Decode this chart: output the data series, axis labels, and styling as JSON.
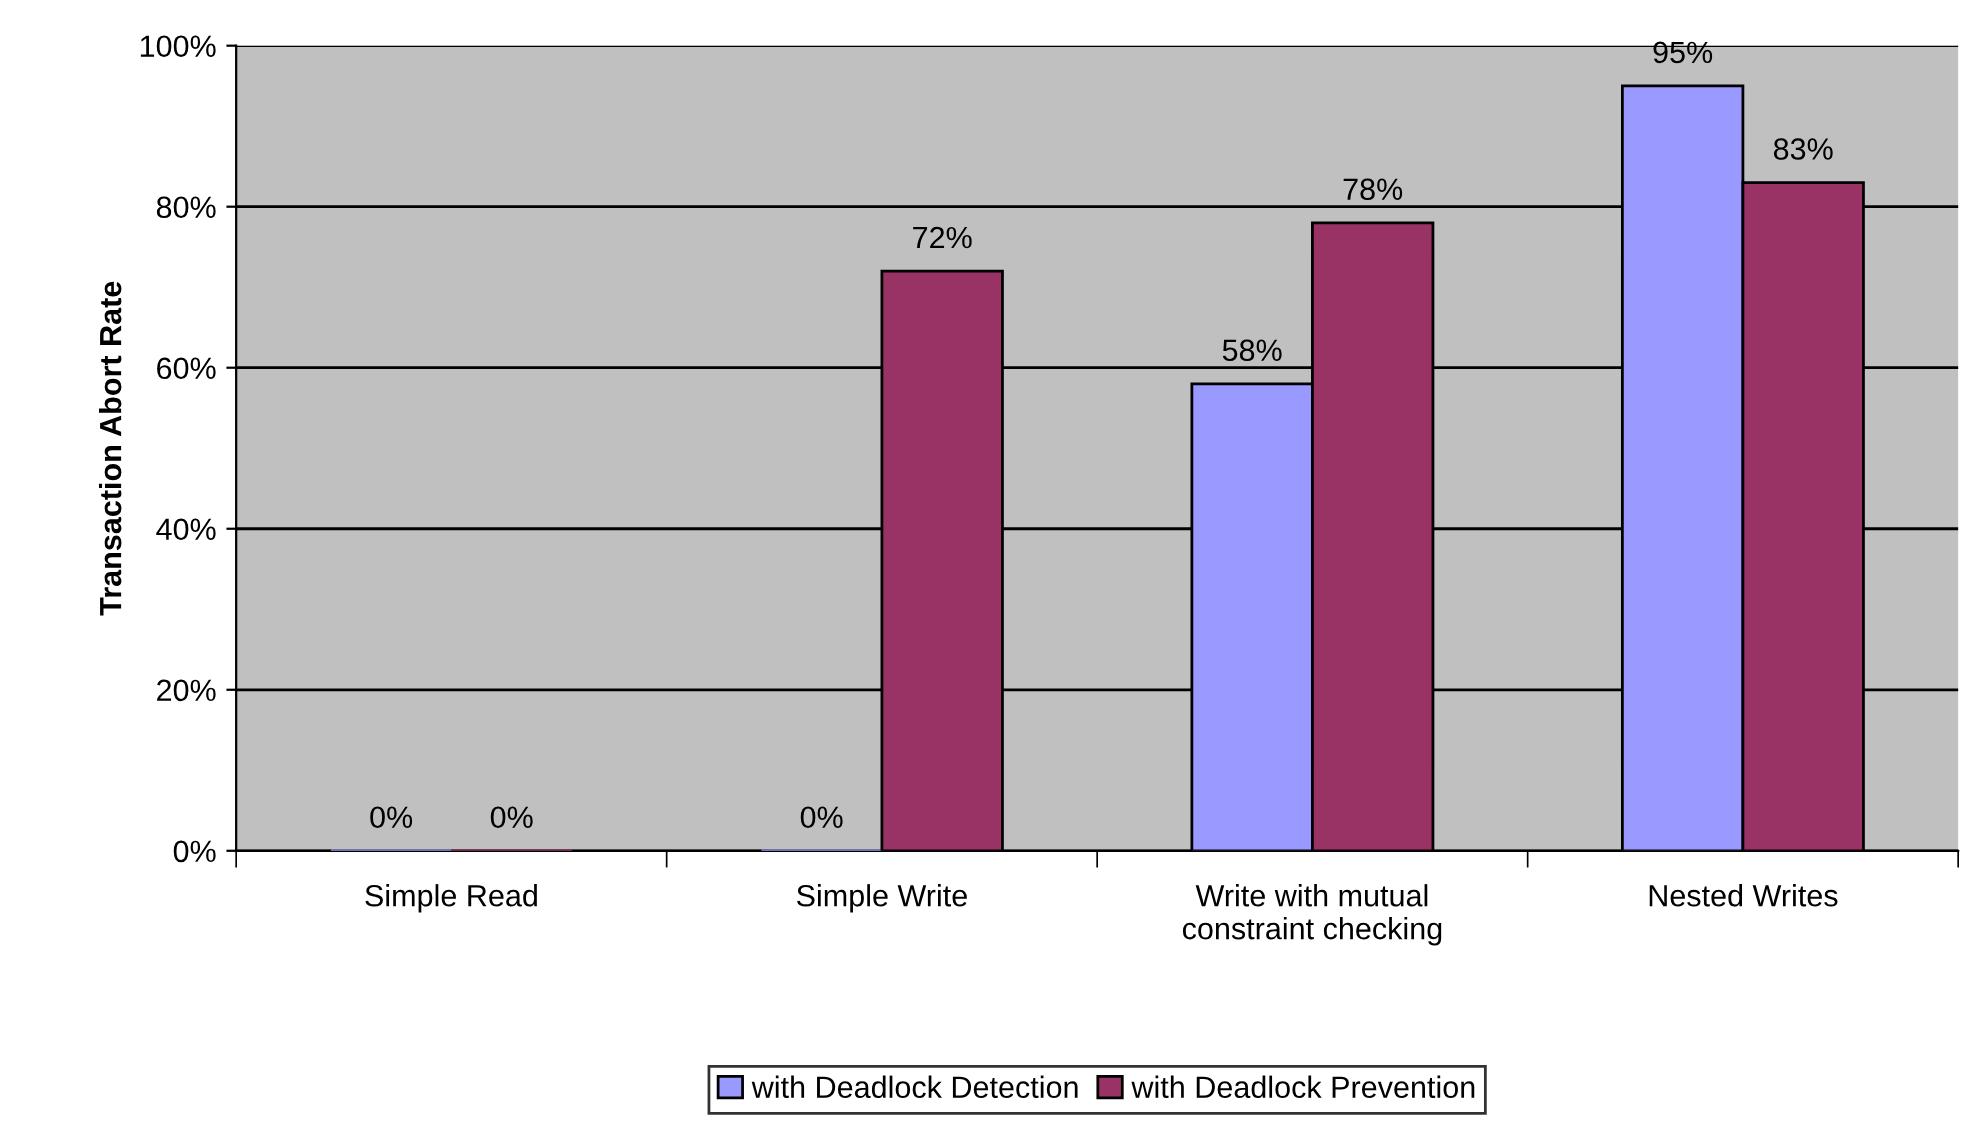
{
  "chart_data": {
    "type": "bar",
    "ylabel": "Transaction Abort Rate",
    "categories": [
      "Simple Read",
      "Simple Write",
      "Write with mutual\nconstraint checking",
      "Nested Writes"
    ],
    "series": [
      {
        "name": "with Deadlock Detection",
        "color": "#9999ff",
        "values": [
          0,
          0,
          58,
          95
        ],
        "value_labels": [
          "0%",
          "0%",
          "58%",
          "95%"
        ]
      },
      {
        "name": "with Deadlock Prevention",
        "color": "#993366",
        "values": [
          0,
          72,
          78,
          83
        ],
        "value_labels": [
          "0%",
          "72%",
          "78%",
          "83%"
        ]
      }
    ],
    "ylim": [
      0,
      100
    ],
    "yticks": [
      {
        "value": 0,
        "label": "0%"
      },
      {
        "value": 20,
        "label": "20%"
      },
      {
        "value": 40,
        "label": "40%"
      },
      {
        "value": 60,
        "label": "60%"
      },
      {
        "value": 80,
        "label": "80%"
      },
      {
        "value": 100,
        "label": "100%"
      }
    ],
    "grid": "y",
    "legend": "bottom"
  }
}
